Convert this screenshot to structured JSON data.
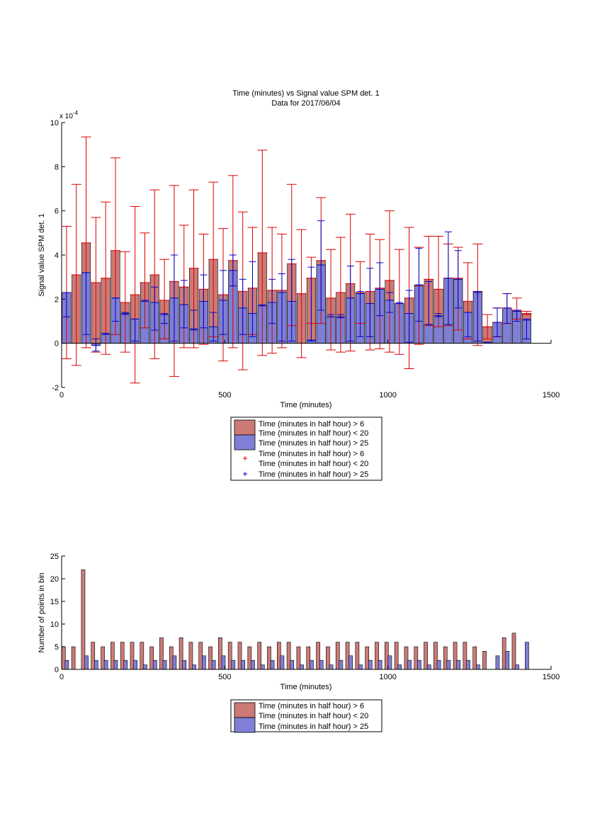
{
  "colors": {
    "red_fill": "#cc7a77",
    "red_line": "#dd0000",
    "blue_fill": "#7f7fd5",
    "blue_line": "#0000cc",
    "axis": "#000000"
  },
  "chart_data": [
    {
      "type": "bar",
      "title": "Time (minutes) vs Signal value SPM det. 1",
      "subtitle": "Data for 2017/06/04",
      "xlabel": "Time (minutes)",
      "ylabel": "Signal value SPM det. 1",
      "y_exponent_label": "x 10",
      "y_exponent_power": "-4",
      "xlim": [
        0,
        1500
      ],
      "ylim": [
        -2,
        10
      ],
      "xticks": [
        "0",
        "500",
        "1000",
        "1500"
      ],
      "yticks": [
        "-2",
        "0",
        "2",
        "4",
        "6",
        "8",
        "10"
      ],
      "bar_width": 27,
      "series": [
        {
          "name": "Time (minutes in half hour) > 6",
          "x": [
            15,
            45,
            75,
            105,
            135,
            165,
            195,
            225,
            255,
            285,
            315,
            345,
            375,
            405,
            435,
            465,
            495,
            525,
            555,
            585,
            615,
            645,
            675,
            705,
            735,
            765,
            795,
            825,
            855,
            885,
            915,
            945,
            975,
            1005,
            1035,
            1065,
            1095,
            1125,
            1155,
            1185,
            1215,
            1245,
            1275,
            1305,
            1335,
            1365,
            1395,
            1425
          ],
          "values": [
            2.3,
            3.1,
            4.55,
            2.75,
            2.95,
            4.2,
            1.85,
            2.2,
            2.75,
            3.1,
            1.95,
            2.8,
            2.55,
            3.4,
            2.45,
            3.8,
            2.2,
            3.75,
            2.35,
            2.5,
            4.1,
            2.4,
            2.4,
            3.6,
            2.25,
            2.95,
            3.75,
            2.05,
            2.3,
            2.7,
            2.3,
            2.35,
            2.5,
            2.85,
            1.8,
            2.05,
            2.6,
            2.9,
            2.45,
            2.95,
            2.95,
            1.9,
            2.35,
            0.75,
            0.95,
            1.6,
            1.5,
            1.35
          ],
          "err_low": [
            -0.7,
            -1.0,
            -0.2,
            -0.4,
            -0.5,
            0.4,
            -0.4,
            -1.8,
            0.7,
            -0.7,
            0.2,
            -1.5,
            -0.2,
            -0.2,
            -0.05,
            0.3,
            -0.8,
            -0.2,
            -1.2,
            0.4,
            -0.55,
            -0.45,
            -0.2,
            0.8,
            -0.65,
            0.9,
            0.9,
            -0.3,
            -0.4,
            -0.35,
            0.9,
            -0.3,
            -0.25,
            -0.4,
            -0.5,
            -1.15,
            -0.05,
            0.8,
            0.75,
            0.8,
            0.6,
            0.2,
            -0.1,
            0.2,
            0.3,
            0.9,
            1.1,
            1.3
          ],
          "err_high": [
            5.3,
            7.2,
            9.35,
            5.7,
            6.4,
            8.4,
            4.15,
            6.2,
            5.0,
            6.95,
            3.8,
            7.15,
            5.35,
            6.95,
            4.95,
            7.3,
            5.2,
            7.6,
            5.95,
            5.25,
            8.75,
            5.25,
            4.95,
            7.2,
            5.15,
            3.9,
            6.6,
            4.25,
            4.8,
            5.85,
            3.7,
            4.95,
            4.7,
            6.0,
            4.25,
            5.25,
            4.35,
            4.85,
            4.85,
            4.5,
            4.35,
            3.65,
            4.5,
            1.3,
            1.6,
            2.25,
            2.05,
            1.45
          ]
        },
        {
          "name": "Time (minutes in half hour) > 25",
          "x": [
            15,
            75,
            105,
            135,
            165,
            195,
            225,
            255,
            285,
            315,
            345,
            375,
            405,
            435,
            465,
            495,
            525,
            555,
            585,
            615,
            645,
            675,
            705,
            765,
            795,
            825,
            855,
            885,
            915,
            945,
            975,
            1005,
            1035,
            1065,
            1095,
            1125,
            1155,
            1185,
            1215,
            1245,
            1275,
            1305,
            1335,
            1365,
            1395,
            1425
          ],
          "values": [
            2.3,
            3.2,
            -0.1,
            0.45,
            2.05,
            1.35,
            1.1,
            1.9,
            1.85,
            1.3,
            2.05,
            1.75,
            0.65,
            1.9,
            0.75,
            1.95,
            3.3,
            1.6,
            1.35,
            1.7,
            1.85,
            2.3,
            1.9,
            0.15,
            3.55,
            1.2,
            1.2,
            2.05,
            2.25,
            1.8,
            2.45,
            1.95,
            1.8,
            1.35,
            2.65,
            0.85,
            1.25,
            2.95,
            2.9,
            1.4,
            2.3,
            0.05,
            0.95,
            1.6,
            1.45,
            1.05
          ],
          "err_low": [
            1.2,
            0.4,
            -0.35,
            0.4,
            1.0,
            1.3,
            0.1,
            1.9,
            0.6,
            0.9,
            0.1,
            0.7,
            0.6,
            0.7,
            0.1,
            0.4,
            2.6,
            0.4,
            0.3,
            1.7,
            0.9,
            0.1,
            0.1,
            0.1,
            1.5,
            1.2,
            1.15,
            0.1,
            0.3,
            0.3,
            1.25,
            1.4,
            1.8,
            0.05,
            1.0,
            0.85,
            1.2,
            0.85,
            1.6,
            0.3,
            0.1,
            0.05,
            0.3,
            0.9,
            1.0,
            0.2
          ],
          "err_high": [
            2.3,
            3.2,
            0.2,
            0.45,
            2.05,
            1.4,
            1.1,
            1.95,
            2.55,
            1.35,
            4.0,
            2.85,
            1.5,
            3.1,
            1.4,
            3.3,
            4.0,
            2.9,
            3.7,
            1.75,
            2.9,
            3.15,
            3.8,
            3.45,
            5.55,
            1.3,
            1.3,
            3.5,
            2.35,
            3.4,
            3.65,
            2.3,
            1.85,
            2.4,
            4.3,
            2.8,
            1.35,
            5.05,
            4.2,
            1.4,
            2.35,
            0.05,
            1.6,
            2.25,
            1.5,
            1.1
          ]
        }
      ],
      "legend": {
        "placement": "below",
        "entries": [
          "Time (minutes in half hour) > 6",
          "Time (minutes in half hour) < 20",
          "Time (minutes in half hour) > 25",
          "Time (minutes in half hour) > 6",
          "Time (minutes in half hour) < 20",
          "Time (minutes in half hour) > 25"
        ]
      }
    },
    {
      "type": "bar",
      "xlabel": "Time (minutes)",
      "ylabel": "Number of points in bin",
      "xlim": [
        0,
        1500
      ],
      "ylim": [
        0,
        25
      ],
      "xticks": [
        "0",
        "500",
        "1000",
        "1500"
      ],
      "yticks": [
        "0",
        "5",
        "10",
        "15",
        "20",
        "25"
      ],
      "bar_width": 11,
      "series": [
        {
          "name": "Time (minutes in half hour) > 6",
          "x": [
            6,
            36,
            66,
            96,
            126,
            156,
            186,
            216,
            246,
            276,
            306,
            336,
            366,
            396,
            426,
            456,
            486,
            516,
            546,
            576,
            606,
            636,
            666,
            696,
            726,
            756,
            786,
            816,
            846,
            876,
            906,
            936,
            966,
            996,
            1026,
            1056,
            1086,
            1116,
            1146,
            1176,
            1206,
            1236,
            1266,
            1296,
            1356,
            1386
          ],
          "values": [
            5,
            5,
            22,
            6,
            5,
            6,
            6,
            6,
            6,
            5,
            7,
            5,
            7,
            6,
            6,
            5,
            7,
            6,
            6,
            5,
            6,
            5,
            6,
            6,
            5,
            5,
            6,
            5,
            6,
            6,
            6,
            5,
            6,
            6,
            6,
            5,
            5,
            6,
            6,
            5,
            6,
            6,
            5,
            4,
            7,
            8
          ]
        },
        {
          "name": "Time (minutes in half hour) > 25",
          "x": [
            16,
            76,
            106,
            136,
            166,
            196,
            226,
            256,
            286,
            316,
            346,
            376,
            406,
            436,
            466,
            496,
            526,
            556,
            586,
            616,
            646,
            676,
            706,
            736,
            766,
            796,
            826,
            856,
            886,
            916,
            946,
            976,
            1006,
            1036,
            1066,
            1096,
            1126,
            1156,
            1186,
            1216,
            1246,
            1276,
            1336,
            1366,
            1396,
            1426
          ],
          "values": [
            2,
            3,
            2,
            2,
            2,
            2,
            2,
            1,
            2,
            2,
            3,
            2,
            1,
            3,
            2,
            3,
            2,
            2,
            2,
            1,
            2,
            3,
            2,
            1,
            2,
            2,
            1,
            2,
            3,
            1,
            2,
            2,
            3,
            1,
            2,
            2,
            1,
            2,
            2,
            2,
            2,
            1,
            3,
            4,
            1,
            6
          ]
        }
      ],
      "legend": {
        "placement": "below",
        "entries": [
          "Time (minutes in half hour) > 6",
          "Time (minutes in half hour) < 20",
          "Time (minutes in half hour) > 25"
        ]
      }
    }
  ]
}
